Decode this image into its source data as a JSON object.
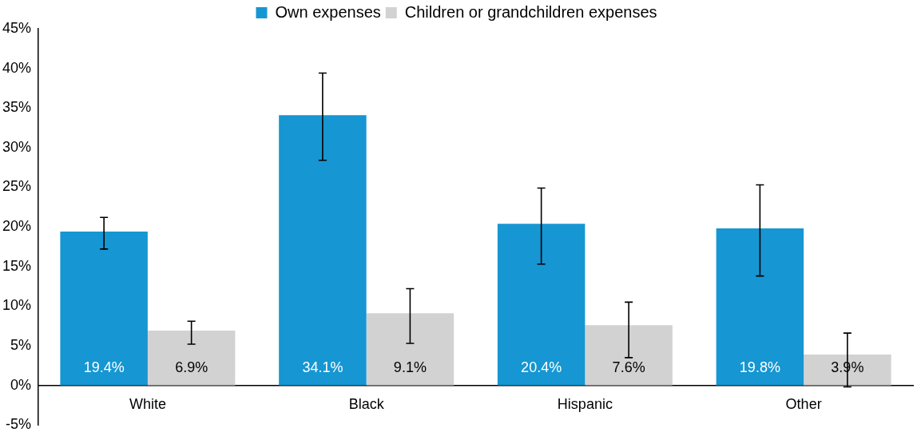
{
  "chart_data": {
    "type": "bar",
    "categories": [
      "White",
      "Black",
      "Hispanic",
      "Other"
    ],
    "series": [
      {
        "name": "Own expenses",
        "color": "#1696d2",
        "values": [
          19.4,
          34.1,
          20.4,
          19.8
        ],
        "value_labels": [
          "19.4%",
          "34.1%",
          "20.4%",
          "19.8%"
        ],
        "errors": [
          [
            17.2,
            21.2
          ],
          [
            28.4,
            39.4
          ],
          [
            15.3,
            24.9
          ],
          [
            13.8,
            25.3
          ]
        ]
      },
      {
        "name": "Children or grandchildren expenses",
        "color": "#d2d2d2",
        "values": [
          6.9,
          9.1,
          7.6,
          3.9
        ],
        "value_labels": [
          "6.9%",
          "9.1%",
          "7.6%",
          "3.9%"
        ],
        "errors": [
          [
            5.2,
            8.1
          ],
          [
            5.3,
            12.2
          ],
          [
            3.5,
            10.5
          ],
          [
            -0.2,
            6.6
          ]
        ]
      }
    ],
    "ylim": [
      -5,
      45
    ],
    "yticks": [
      {
        "value": -5,
        "label": "-5%"
      },
      {
        "value": 0,
        "label": "0%"
      },
      {
        "value": 5,
        "label": "5%"
      },
      {
        "value": 10,
        "label": "10%"
      },
      {
        "value": 15,
        "label": "15%"
      },
      {
        "value": 20,
        "label": "20%"
      },
      {
        "value": 25,
        "label": "25%"
      },
      {
        "value": 30,
        "label": "30%"
      },
      {
        "value": 35,
        "label": "35%"
      },
      {
        "value": 40,
        "label": "40%"
      },
      {
        "value": 45,
        "label": "45%"
      }
    ],
    "grid": false,
    "legend": "top"
  }
}
